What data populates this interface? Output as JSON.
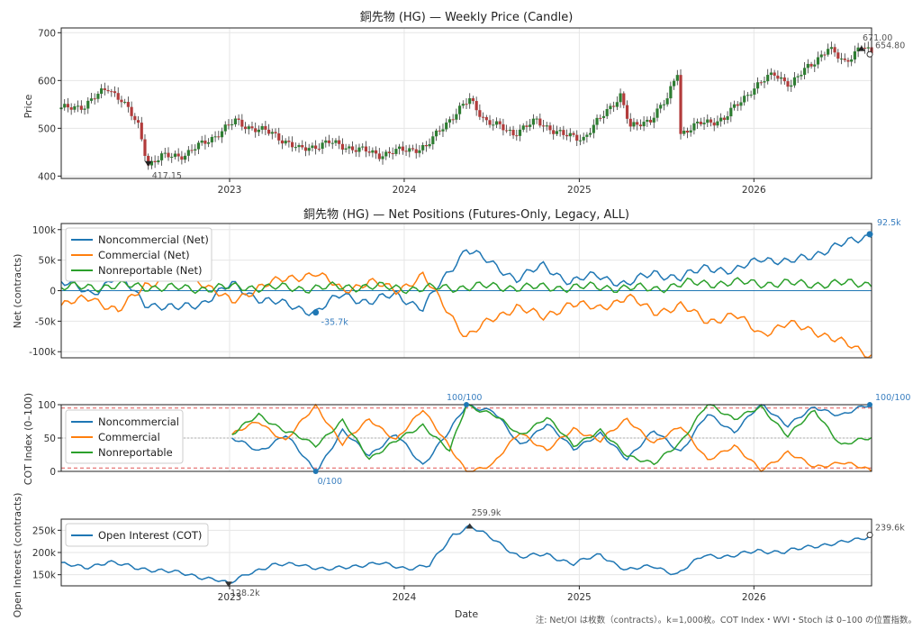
{
  "colors": {
    "noncommercial": "#1f77b4",
    "commercial": "#ff7f0e",
    "nonreportable": "#2ca02c",
    "oi": "#1f77b4",
    "candle_up": "#2e7d32",
    "candle_down": "#b23b3b",
    "grid": "#e6e6e6",
    "threshold": "#e05555"
  },
  "footnote": "注: Net/OI は枚数（contracts）。k=1,000枚。COT Index・WVI・Stoch は 0–100 の位置指数。",
  "x_label": "Date",
  "x_ticks": [
    "2023",
    "2024",
    "2025",
    "2026"
  ],
  "chart_data": [
    {
      "type": "candlestick",
      "title": "銅先物 (HG) — Weekly Price (Candle)",
      "ylabel": "Price",
      "ylim": [
        395,
        710
      ],
      "yticks": [
        "400",
        "500",
        "600",
        "700"
      ],
      "x_range": [
        "2022-01-14",
        "2026-09-04"
      ],
      "annotations": {
        "min": "417.15",
        "max": "671.00",
        "last": "654.80"
      },
      "anchors": [
        [
          "2022-01-14",
          540
        ],
        [
          "2022-03-04",
          548
        ],
        [
          "2022-04-22",
          585
        ],
        [
          "2022-05-20",
          560
        ],
        [
          "2022-06-24",
          505
        ],
        [
          "2022-07-15",
          425
        ],
        [
          "2022-08-12",
          440
        ],
        [
          "2022-09-30",
          445
        ],
        [
          "2022-11-25",
          480
        ],
        [
          "2023-01-13",
          515
        ],
        [
          "2023-02-17",
          500
        ],
        [
          "2023-03-31",
          490
        ],
        [
          "2023-05-26",
          455
        ],
        [
          "2023-07-28",
          470
        ],
        [
          "2023-09-29",
          455
        ],
        [
          "2023-11-10",
          445
        ],
        [
          "2024-01-05",
          455
        ],
        [
          "2024-02-16",
          460
        ],
        [
          "2024-03-22",
          505
        ],
        [
          "2024-05-17",
          560
        ],
        [
          "2024-06-21",
          515
        ],
        [
          "2024-08-16",
          490
        ],
        [
          "2024-10-04",
          515
        ],
        [
          "2024-11-29",
          485
        ],
        [
          "2025-01-10",
          480
        ],
        [
          "2025-02-14",
          520
        ],
        [
          "2025-03-28",
          570
        ],
        [
          "2025-04-18",
          500
        ],
        [
          "2025-05-30",
          520
        ],
        [
          "2025-07-04",
          560
        ],
        [
          "2025-07-25",
          620
        ],
        [
          "2025-08-01",
          490
        ],
        [
          "2025-09-12",
          510
        ],
        [
          "2025-10-31",
          520
        ],
        [
          "2025-12-26",
          580
        ],
        [
          "2026-02-13",
          615
        ],
        [
          "2026-03-20",
          590
        ],
        [
          "2026-04-24",
          630
        ],
        [
          "2026-06-05",
          665
        ],
        [
          "2026-07-10",
          640
        ],
        [
          "2026-08-14",
          671
        ],
        [
          "2026-09-04",
          654.8
        ]
      ]
    },
    {
      "type": "line",
      "title": "銅先物 (HG) — Net Positions (Futures-Only, Legacy, ALL)",
      "ylabel": "Net (contracts)",
      "ylim": [
        -110000,
        110000
      ],
      "yticks": [
        "100k",
        "50k",
        "0",
        "-50k",
        "-100k"
      ],
      "annotations": {
        "min": "-35.7k",
        "last": "92.5k"
      },
      "series": [
        {
          "name": "Noncommercial (Net)",
          "key": "noncommercial",
          "points": [
            [
              "2022-01-14",
              15000
            ],
            [
              "2022-03-18",
              -5000
            ],
            [
              "2022-05-13",
              25000
            ],
            [
              "2022-07-08",
              -20000
            ],
            [
              "2022-09-09",
              -30000
            ],
            [
              "2022-11-04",
              -20000
            ],
            [
              "2023-01-06",
              10000
            ],
            [
              "2023-03-10",
              -15000
            ],
            [
              "2023-05-12",
              -25000
            ],
            [
              "2023-06-30",
              -35700
            ],
            [
              "2023-08-25",
              -5000
            ],
            [
              "2023-10-20",
              -20000
            ],
            [
              "2023-12-15",
              -5000
            ],
            [
              "2024-02-09",
              -30000
            ],
            [
              "2024-03-15",
              10000
            ],
            [
              "2024-05-10",
              70000
            ],
            [
              "2024-06-28",
              45000
            ],
            [
              "2024-08-23",
              20000
            ],
            [
              "2024-10-18",
              40000
            ],
            [
              "2024-12-13",
              15000
            ],
            [
              "2025-02-07",
              25000
            ],
            [
              "2025-04-11",
              10000
            ],
            [
              "2025-06-06",
              30000
            ],
            [
              "2025-08-01",
              20000
            ],
            [
              "2025-09-26",
              40000
            ],
            [
              "2025-11-21",
              30000
            ],
            [
              "2026-01-16",
              55000
            ],
            [
              "2026-03-13",
              45000
            ],
            [
              "2026-05-08",
              60000
            ],
            [
              "2026-07-03",
              75000
            ],
            [
              "2026-09-04",
              92500
            ]
          ]
        },
        {
          "name": "Commercial (Net)",
          "key": "commercial",
          "points": [
            [
              "2022-01-14",
              -25000
            ],
            [
              "2022-03-18",
              -10000
            ],
            [
              "2022-05-13",
              -35000
            ],
            [
              "2022-07-08",
              10000
            ],
            [
              "2022-09-09",
              25000
            ],
            [
              "2022-11-04",
              15000
            ],
            [
              "2023-01-06",
              -20000
            ],
            [
              "2023-03-10",
              10000
            ],
            [
              "2023-05-12",
              20000
            ],
            [
              "2023-06-30",
              30000
            ],
            [
              "2023-08-25",
              0
            ],
            [
              "2023-10-20",
              15000
            ],
            [
              "2023-12-15",
              0
            ],
            [
              "2024-02-09",
              25000
            ],
            [
              "2024-03-15",
              -15000
            ],
            [
              "2024-05-10",
              -75000
            ],
            [
              "2024-06-28",
              -50000
            ],
            [
              "2024-08-23",
              -25000
            ],
            [
              "2024-10-18",
              -45000
            ],
            [
              "2024-12-13",
              -20000
            ],
            [
              "2025-02-07",
              -30000
            ],
            [
              "2025-04-11",
              -10000
            ],
            [
              "2025-06-06",
              -35000
            ],
            [
              "2025-08-01",
              -25000
            ],
            [
              "2025-09-26",
              -50000
            ],
            [
              "2025-11-21",
              -40000
            ],
            [
              "2026-01-16",
              -70000
            ],
            [
              "2026-03-13",
              -55000
            ],
            [
              "2026-05-08",
              -65000
            ],
            [
              "2026-07-03",
              -85000
            ],
            [
              "2026-09-04",
              -105000
            ]
          ]
        },
        {
          "name": "Nonreportable (Net)",
          "key": "nonreportable",
          "points": [
            [
              "2022-01-14",
              5000
            ],
            [
              "2022-06-03",
              8000
            ],
            [
              "2022-10-07",
              3000
            ],
            [
              "2023-02-03",
              6000
            ],
            [
              "2023-06-02",
              4000
            ],
            [
              "2023-10-06",
              7000
            ],
            [
              "2024-02-02",
              3000
            ],
            [
              "2024-06-07",
              7000
            ],
            [
              "2024-10-04",
              5000
            ],
            [
              "2025-02-07",
              6000
            ],
            [
              "2025-06-06",
              3000
            ],
            [
              "2025-08-15",
              12000
            ],
            [
              "2025-12-12",
              13000
            ],
            [
              "2026-04-10",
              11000
            ],
            [
              "2026-09-04",
              12000
            ]
          ]
        }
      ]
    },
    {
      "type": "line",
      "title": "",
      "ylabel": "COT Index (0–100)",
      "ylim": [
        0,
        100
      ],
      "yticks": [
        "100",
        "50",
        "0"
      ],
      "thresholds": [
        95,
        5
      ],
      "annotations": {
        "max": "100/100",
        "min": "0/100",
        "last": "100/100"
      },
      "x_start": "2023-01-06",
      "series": [
        {
          "name": "Noncommercial",
          "key": "noncommercial",
          "points": [
            [
              "2023-01-06",
              50
            ],
            [
              "2023-03-03",
              30
            ],
            [
              "2023-04-28",
              55
            ],
            [
              "2023-06-30",
              0
            ],
            [
              "2023-08-25",
              60
            ],
            [
              "2023-10-20",
              25
            ],
            [
              "2023-12-15",
              55
            ],
            [
              "2024-02-09",
              10
            ],
            [
              "2024-04-05",
              60
            ],
            [
              "2024-05-10",
              100
            ],
            [
              "2024-07-05",
              90
            ],
            [
              "2024-08-30",
              40
            ],
            [
              "2024-10-25",
              70
            ],
            [
              "2024-12-20",
              35
            ],
            [
              "2025-02-14",
              55
            ],
            [
              "2025-04-11",
              20
            ],
            [
              "2025-06-06",
              60
            ],
            [
              "2025-08-01",
              30
            ],
            [
              "2025-09-26",
              85
            ],
            [
              "2025-11-21",
              60
            ],
            [
              "2026-01-16",
              100
            ],
            [
              "2026-03-13",
              70
            ],
            [
              "2026-05-08",
              95
            ],
            [
              "2026-07-03",
              85
            ],
            [
              "2026-09-04",
              100
            ]
          ]
        },
        {
          "name": "Commercial",
          "key": "commercial",
          "points": [
            [
              "2023-01-06",
              55
            ],
            [
              "2023-03-03",
              75
            ],
            [
              "2023-04-28",
              45
            ],
            [
              "2023-06-30",
              100
            ],
            [
              "2023-08-25",
              40
            ],
            [
              "2023-10-20",
              80
            ],
            [
              "2023-12-15",
              45
            ],
            [
              "2024-02-09",
              95
            ],
            [
              "2024-04-05",
              35
            ],
            [
              "2024-05-10",
              0
            ],
            [
              "2024-07-05",
              10
            ],
            [
              "2024-08-30",
              60
            ],
            [
              "2024-10-25",
              30
            ],
            [
              "2024-12-20",
              65
            ],
            [
              "2025-02-14",
              45
            ],
            [
              "2025-04-11",
              80
            ],
            [
              "2025-06-06",
              40
            ],
            [
              "2025-08-01",
              70
            ],
            [
              "2025-09-26",
              15
            ],
            [
              "2025-11-21",
              40
            ],
            [
              "2026-01-16",
              0
            ],
            [
              "2026-03-13",
              30
            ],
            [
              "2026-05-08",
              5
            ],
            [
              "2026-07-03",
              15
            ],
            [
              "2026-09-04",
              0
            ]
          ]
        },
        {
          "name": "Nonreportable",
          "key": "nonreportable",
          "points": [
            [
              "2023-01-06",
              55
            ],
            [
              "2023-03-03",
              85
            ],
            [
              "2023-04-28",
              60
            ],
            [
              "2023-06-30",
              40
            ],
            [
              "2023-08-25",
              75
            ],
            [
              "2023-10-20",
              20
            ],
            [
              "2023-12-15",
              45
            ],
            [
              "2024-02-09",
              70
            ],
            [
              "2024-04-05",
              30
            ],
            [
              "2024-05-10",
              100
            ],
            [
              "2024-07-05",
              85
            ],
            [
              "2024-08-30",
              55
            ],
            [
              "2024-10-25",
              80
            ],
            [
              "2024-12-20",
              40
            ],
            [
              "2025-02-14",
              60
            ],
            [
              "2025-04-11",
              25
            ],
            [
              "2025-06-06",
              10
            ],
            [
              "2025-08-01",
              45
            ],
            [
              "2025-09-26",
              100
            ],
            [
              "2025-11-21",
              80
            ],
            [
              "2026-01-16",
              95
            ],
            [
              "2026-03-13",
              55
            ],
            [
              "2026-05-08",
              90
            ],
            [
              "2026-07-03",
              40
            ],
            [
              "2026-09-04",
              50
            ]
          ]
        }
      ]
    },
    {
      "type": "line",
      "title": "",
      "ylabel": "Open Interest (contracts)",
      "ylim": [
        125000,
        275000
      ],
      "yticks": [
        "250k",
        "200k",
        "150k"
      ],
      "annotations": {
        "min": "128.2k",
        "max": "259.9k",
        "last": "239.6k"
      },
      "series": [
        {
          "name": "Open Interest (COT)",
          "key": "oi",
          "points": [
            [
              "2022-01-14",
              175000
            ],
            [
              "2022-03-04",
              165000
            ],
            [
              "2022-04-22",
              180000
            ],
            [
              "2022-06-17",
              165000
            ],
            [
              "2022-08-12",
              160000
            ],
            [
              "2022-10-07",
              150000
            ],
            [
              "2022-12-02",
              140000
            ],
            [
              "2022-12-30",
              128200
            ],
            [
              "2023-02-10",
              155000
            ],
            [
              "2023-03-31",
              170000
            ],
            [
              "2023-05-26",
              175000
            ],
            [
              "2023-07-21",
              160000
            ],
            [
              "2023-09-15",
              170000
            ],
            [
              "2023-11-10",
              175000
            ],
            [
              "2024-01-05",
              165000
            ],
            [
              "2024-02-23",
              170000
            ],
            [
              "2024-04-12",
              240000
            ],
            [
              "2024-05-17",
              259900
            ],
            [
              "2024-07-12",
              225000
            ],
            [
              "2024-08-30",
              190000
            ],
            [
              "2024-10-25",
              195000
            ],
            [
              "2024-12-20",
              175000
            ],
            [
              "2025-02-14",
              195000
            ],
            [
              "2025-04-11",
              160000
            ],
            [
              "2025-06-06",
              170000
            ],
            [
              "2025-07-25",
              150000
            ],
            [
              "2025-09-19",
              195000
            ],
            [
              "2025-11-14",
              190000
            ],
            [
              "2026-01-09",
              205000
            ],
            [
              "2026-03-06",
              200000
            ],
            [
              "2026-05-01",
              215000
            ],
            [
              "2026-06-26",
              220000
            ],
            [
              "2026-08-07",
              230000
            ],
            [
              "2026-09-04",
              239600
            ]
          ]
        }
      ]
    }
  ]
}
